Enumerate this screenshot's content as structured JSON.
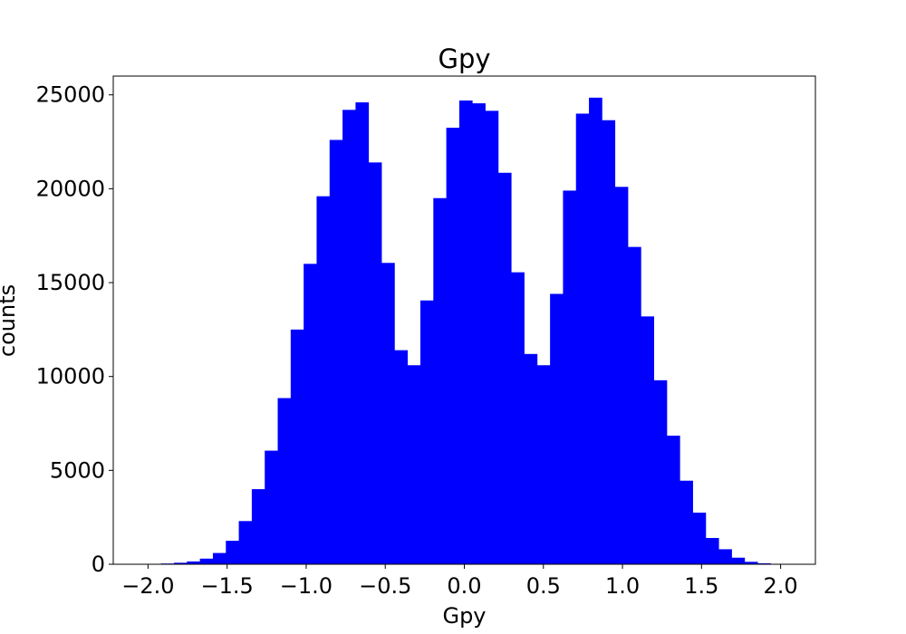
{
  "chart_data": {
    "type": "bar",
    "title": "Gpy",
    "xlabel": "Gpy",
    "ylabel": "counts",
    "xlim": [
      -2.22,
      2.22
    ],
    "ylim": [
      0,
      26000
    ],
    "xticks": [
      -2.0,
      -1.5,
      -1.0,
      -0.5,
      0.0,
      0.5,
      1.0,
      1.5,
      2.0
    ],
    "xtick_labels": [
      "−2.0",
      "−1.5",
      "−1.0",
      "−0.5",
      "0.0",
      "0.5",
      "1.0",
      "1.5",
      "2.0"
    ],
    "yticks": [
      0,
      5000,
      10000,
      15000,
      20000,
      25000
    ],
    "ytick_labels": [
      "0",
      "5000",
      "10000",
      "15000",
      "20000",
      "25000"
    ],
    "grid": false,
    "bar_color": "#0000ff",
    "bins": {
      "start": -2.0,
      "width": 0.082,
      "counts": [
        10,
        40,
        80,
        150,
        300,
        600,
        1250,
        2300,
        4000,
        6050,
        8850,
        12500,
        16000,
        19600,
        22600,
        24200,
        24600,
        21400,
        16050,
        11400,
        10600,
        14050,
        19500,
        23250,
        24700,
        24550,
        24150,
        20850,
        15550,
        11200,
        10600,
        14400,
        19900,
        24000,
        24850,
        23650,
        20100,
        16900,
        13200,
        9800,
        6850,
        4450,
        2750,
        1400,
        800,
        350,
        130,
        50,
        10
      ]
    }
  }
}
